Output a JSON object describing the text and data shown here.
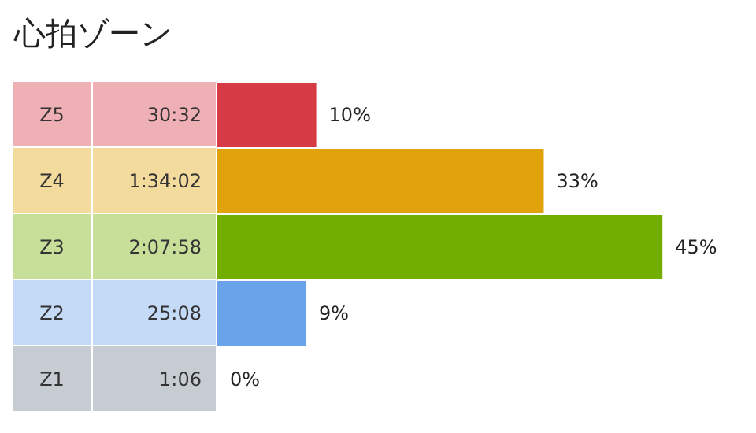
{
  "chart_data": {
    "type": "bar",
    "orientation": "horizontal",
    "title": "心拍ゾーン",
    "categories": [
      "Z5",
      "Z4",
      "Z3",
      "Z2",
      "Z1"
    ],
    "values": [
      10,
      33,
      45,
      9,
      0
    ],
    "value_labels": [
      "10%",
      "33%",
      "45%",
      "9%",
      "0%"
    ],
    "colors": [
      "#d63a45",
      "#e0a30b",
      "#72ae00",
      "#6ba3eb",
      "#9aa3af"
    ],
    "annotations": [
      "30:32",
      "1:34:02",
      "2:07:58",
      "25:08",
      "1:06"
    ]
  }
}
